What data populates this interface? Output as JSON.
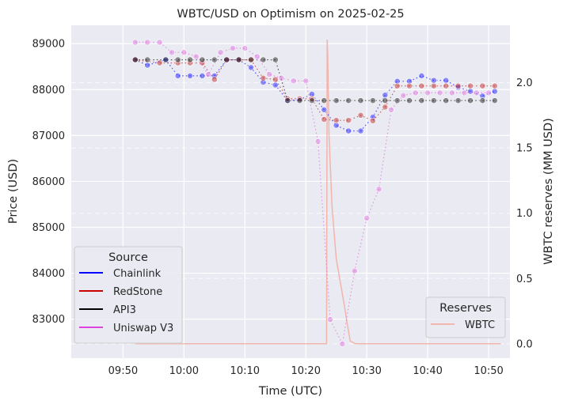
{
  "chart_data": {
    "type": "line",
    "title": "WBTC/USD on Optimism on 2025-02-25",
    "xlabel": "Time (UTC)",
    "ylabel": "Price (USD)",
    "y2label": "WBTC reserves (MM USD)",
    "xlim_minutes": [
      -8.5,
      63.5
    ],
    "ylim": [
      82150,
      89400
    ],
    "y2lim": [
      -0.11,
      2.44
    ],
    "x_ticks": [
      {
        "m": 0,
        "label": "09:50"
      },
      {
        "m": 10,
        "label": "10:00"
      },
      {
        "m": 20,
        "label": "10:10"
      },
      {
        "m": 30,
        "label": "10:20"
      },
      {
        "m": 40,
        "label": "10:30"
      },
      {
        "m": 50,
        "label": "10:40"
      },
      {
        "m": 60,
        "label": "10:50"
      }
    ],
    "y_ticks": [
      83000,
      84000,
      85000,
      86000,
      87000,
      88000,
      89000
    ],
    "y2_ticks": [
      0.0,
      0.5,
      1.0,
      1.5,
      2.0
    ],
    "y2_tick_labels": [
      "0.0",
      "0.5",
      "1.0",
      "1.5",
      "2.0"
    ],
    "legend_source": {
      "title": "Source",
      "position": "lower-left",
      "entries": [
        {
          "label": "Chainlink",
          "color": "#0000ff"
        },
        {
          "label": "RedStone",
          "color": "#cc0000"
        },
        {
          "label": "API3",
          "color": "#000000"
        },
        {
          "label": "Uniswap V3",
          "color": "#dd44dd"
        }
      ]
    },
    "legend_reserves": {
      "title": "Reserves",
      "position": "lower-right",
      "entries": [
        {
          "label": "WBTC",
          "color": "#f4a89a"
        }
      ]
    },
    "series": [
      {
        "name": "Chainlink",
        "color": "#2222ff",
        "x": [
          2,
          4,
          7,
          9,
          11,
          13,
          15,
          17,
          19,
          21,
          23,
          25,
          27,
          29,
          31,
          33,
          35,
          37,
          39,
          41,
          43,
          45,
          47,
          49,
          51,
          53,
          55,
          57,
          59,
          61
        ],
        "y": [
          88650,
          88530,
          88650,
          88300,
          88300,
          88300,
          88300,
          88650,
          88650,
          88480,
          88160,
          88100,
          87760,
          87780,
          87900,
          87560,
          87220,
          87100,
          87100,
          87400,
          87880,
          88180,
          88180,
          88300,
          88200,
          88200,
          88050,
          87960,
          87860,
          87960
        ]
      },
      {
        "name": "RedStone",
        "color": "#c03030",
        "x": [
          2,
          6,
          9,
          11,
          13,
          15,
          17,
          19,
          21,
          23,
          25,
          27,
          29,
          31,
          33,
          35,
          37,
          39,
          41,
          43,
          45,
          47,
          49,
          51,
          53,
          55,
          57,
          59,
          61
        ],
        "y": [
          88650,
          88580,
          88580,
          88580,
          88580,
          88220,
          88650,
          88650,
          88650,
          88250,
          88220,
          87800,
          87800,
          87800,
          87350,
          87330,
          87330,
          87440,
          87320,
          87620,
          88080,
          88080,
          88080,
          88080,
          88080,
          88080,
          88080,
          88080,
          88080
        ]
      },
      {
        "name": "API3",
        "color": "#222222",
        "x": [
          2,
          4,
          7,
          9,
          11,
          13,
          15,
          17,
          19,
          21,
          23,
          25,
          27,
          29,
          31,
          33,
          35,
          37,
          39,
          41,
          43,
          45,
          47,
          49,
          51,
          53,
          55,
          57,
          59,
          61
        ],
        "y": [
          88650,
          88650,
          88650,
          88650,
          88650,
          88650,
          88650,
          88650,
          88650,
          88650,
          88650,
          88650,
          87760,
          87760,
          87760,
          87760,
          87760,
          87760,
          87760,
          87760,
          87760,
          87760,
          87760,
          87760,
          87760,
          87760,
          87760,
          87760,
          87760,
          87760
        ]
      },
      {
        "name": "Uniswap V3",
        "color": "#dd77dd",
        "x": [
          2,
          4,
          6,
          8,
          10,
          12,
          14,
          16,
          18,
          20,
          22,
          24,
          26,
          28,
          30,
          32,
          34,
          36,
          38,
          40,
          42,
          44,
          46,
          48,
          50,
          52,
          54,
          56,
          58,
          60
        ],
        "y": [
          89030,
          89030,
          89030,
          88810,
          88810,
          88720,
          88330,
          88810,
          88900,
          88900,
          88720,
          88330,
          88250,
          88190,
          88190,
          86870,
          82990,
          82460,
          84050,
          85200,
          85830,
          87560,
          87870,
          87930,
          87930,
          87930,
          87930,
          87930,
          87930,
          87930
        ]
      }
    ],
    "reserves": {
      "name": "WBTC",
      "color": "#f4a89a",
      "x": [
        2,
        28.4,
        33.4,
        33.5,
        33.6,
        33.8,
        34.3,
        35,
        36.3,
        36.8,
        37.3,
        38.2,
        62
      ],
      "y": [
        0.0,
        0.0,
        0.0,
        2.33,
        2.2,
        1.6,
        1.05,
        0.65,
        0.3,
        0.15,
        0.02,
        0.0,
        0.0
      ]
    }
  }
}
